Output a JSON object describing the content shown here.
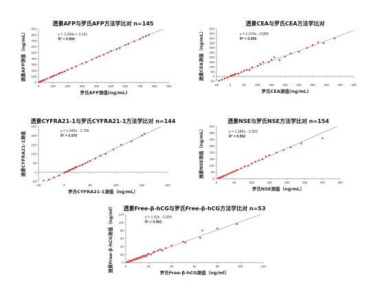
{
  "chart_data": [
    {
      "type": "scatter",
      "title": "透景AFP与罗氏AFP方法学比对 n=145",
      "xlabel": "罗氏AFP测值(ng/mL)",
      "ylabel": "透景AFP测值（ng/mL）",
      "xlim": [
        0,
        900
      ],
      "ylim": [
        0,
        900
      ],
      "xticks": [
        0,
        100,
        200,
        300,
        400,
        500,
        600,
        700,
        800,
        900
      ],
      "yticks": [
        0,
        100,
        200,
        300,
        400,
        500,
        600,
        700,
        800,
        900
      ],
      "equation": "y = 1.044x + 3.141",
      "r2": "R² = 0.990",
      "trend": {
        "slope": 1.044,
        "intercept": 3.141
      },
      "series": [
        {
          "color": "#d42a2a",
          "points": [
            [
              5,
              8
            ],
            [
              10,
              12
            ],
            [
              15,
              18
            ],
            [
              20,
              22
            ],
            [
              28,
              30
            ],
            [
              35,
              40
            ],
            [
              45,
              48
            ],
            [
              60,
              66
            ],
            [
              80,
              84
            ],
            [
              90,
              96
            ],
            [
              100,
              108
            ],
            [
              110,
              118
            ],
            [
              125,
              130
            ],
            [
              140,
              148
            ],
            [
              150,
              160
            ],
            [
              165,
              170
            ],
            [
              180,
              186
            ],
            [
              200,
              210
            ],
            [
              230,
              240
            ],
            [
              260,
              270
            ],
            [
              300,
              315
            ],
            [
              330,
              340
            ],
            [
              370,
              385
            ],
            [
              400,
              420
            ],
            [
              420,
              440
            ],
            [
              450,
              465
            ],
            [
              480,
              500
            ],
            [
              500,
              530
            ],
            [
              540,
              560
            ],
            [
              560,
              580
            ],
            [
              600,
              630
            ],
            [
              620,
              650
            ],
            [
              660,
              690
            ],
            [
              700,
              730
            ],
            [
              720,
              760
            ],
            [
              740,
              780
            ],
            [
              760,
              800
            ]
          ]
        }
      ]
    },
    {
      "type": "scatter",
      "title": "透景CEA与罗氏CEA方法学比对",
      "xlabel": "罗氏CEA测值(ng/mL)",
      "ylabel": "透景CEA测值（ng/mL）",
      "xlim": [
        -50,
        450
      ],
      "ylim": [
        -50,
        500
      ],
      "xticks": [
        -50,
        0,
        50,
        100,
        150,
        200,
        250,
        300,
        350,
        400,
        450
      ],
      "yticks": [
        -50,
        0,
        50,
        100,
        150,
        200,
        250,
        300,
        350,
        400,
        450,
        500
      ],
      "equation": "y = 1.074x - 0.959",
      "r2": "R² = 0.955",
      "trend": {
        "slope": 1.074,
        "intercept": -0.959
      },
      "series": [
        {
          "color": "#d42a2a",
          "points": [
            [
              -40,
              -45
            ],
            [
              -30,
              -35
            ],
            [
              -20,
              -22
            ],
            [
              -10,
              -15
            ],
            [
              0,
              2
            ],
            [
              5,
              8
            ],
            [
              10,
              12
            ],
            [
              15,
              20
            ],
            [
              20,
              25
            ],
            [
              30,
              28
            ],
            [
              40,
              45
            ],
            [
              50,
              60
            ],
            [
              60,
              70
            ],
            [
              70,
              65
            ],
            [
              80,
              95
            ],
            [
              100,
              110
            ],
            [
              110,
              130
            ],
            [
              120,
              150
            ],
            [
              140,
              150
            ],
            [
              150,
              175
            ],
            [
              160,
              200
            ],
            [
              180,
              170
            ],
            [
              200,
              210
            ],
            [
              220,
              240
            ],
            [
              250,
              260
            ],
            [
              280,
              300
            ],
            [
              300,
              330
            ],
            [
              320,
              360
            ],
            [
              340,
              350
            ],
            [
              380,
              400
            ]
          ]
        }
      ]
    },
    {
      "type": "scatter",
      "title": "透景CYFRA21-1与罗氏CYFRA21-1方法学比对 n=144",
      "xlabel": "罗氏CYFRA21-1测值（ng/mL）",
      "ylabel": "透景CYFRA21-1测值",
      "xlim": [
        -50,
        200
      ],
      "ylim": [
        -50,
        250
      ],
      "xticks": [
        -50,
        0,
        50,
        100,
        150,
        200
      ],
      "yticks": [
        -50,
        0,
        50,
        100,
        150,
        200,
        250
      ],
      "equation": "y = 1.349x - 2.795",
      "r2": "R² = 0.970",
      "trend": {
        "slope": 1.349,
        "intercept": -2.795
      },
      "series": [
        {
          "color": "#d42a2a",
          "points": [
            [
              -40,
              -45
            ],
            [
              -30,
              -40
            ],
            [
              -20,
              -28
            ],
            [
              -10,
              -18
            ],
            [
              0,
              -2
            ],
            [
              3,
              2
            ],
            [
              5,
              4
            ],
            [
              8,
              8
            ],
            [
              10,
              10
            ],
            [
              12,
              14
            ],
            [
              15,
              18
            ],
            [
              18,
              20
            ],
            [
              20,
              24
            ],
            [
              22,
              28
            ],
            [
              25,
              30
            ],
            [
              30,
              36
            ],
            [
              35,
              40
            ],
            [
              40,
              48
            ],
            [
              45,
              55
            ],
            [
              50,
              62
            ],
            [
              60,
              75
            ],
            [
              70,
              90
            ],
            [
              80,
              100
            ],
            [
              95,
              125
            ],
            [
              110,
              150
            ],
            [
              130,
              170
            ],
            [
              150,
              200
            ],
            [
              155,
              210
            ]
          ]
        }
      ]
    },
    {
      "type": "scatter",
      "title": "透景NSE与罗氏NSE方法学比对 n=154",
      "xlabel": "罗氏NSE测值（ng/mL）",
      "ylabel": "透景NSE测值（ng/mL）",
      "xlim": [
        0,
        350
      ],
      "ylim": [
        0,
        400
      ],
      "xticks": [
        0,
        50,
        100,
        150,
        200,
        250,
        300,
        350
      ],
      "yticks": [
        0,
        50,
        100,
        150,
        200,
        250,
        300,
        350,
        400
      ],
      "equation": "y = 1.183x - 3.322",
      "r2": "R² = 0.952",
      "trend": {
        "slope": 1.183,
        "intercept": -3.322
      },
      "series": [
        {
          "color": "#d42a2a",
          "points": [
            [
              5,
              4
            ],
            [
              8,
              6
            ],
            [
              10,
              8
            ],
            [
              12,
              10
            ],
            [
              15,
              14
            ],
            [
              18,
              18
            ],
            [
              20,
              20
            ],
            [
              25,
              25
            ],
            [
              30,
              32
            ],
            [
              35,
              38
            ],
            [
              40,
              45
            ],
            [
              45,
              50
            ],
            [
              50,
              55
            ],
            [
              55,
              62
            ],
            [
              60,
              68
            ],
            [
              70,
              80
            ],
            [
              80,
              95
            ],
            [
              90,
              100
            ],
            [
              100,
              115
            ],
            [
              110,
              130
            ],
            [
              120,
              140
            ],
            [
              130,
              150
            ],
            [
              140,
              170
            ],
            [
              150,
              180
            ],
            [
              170,
              200
            ],
            [
              190,
              220
            ],
            [
              210,
              240
            ],
            [
              240,
              270
            ],
            [
              300,
              310
            ]
          ]
        }
      ]
    },
    {
      "type": "scatter",
      "title": "透景Free-β-hCG与罗氏Free-β-hCG方法学比对 n=53",
      "xlabel": "罗氏Free-β-hCG测值（ng/ml）",
      "ylabel": "透景Free-β-hCG测值（ng/ml）",
      "xlim": [
        0,
        120
      ],
      "ylim": [
        0,
        120
      ],
      "xticks": [
        0,
        20,
        40,
        60,
        80,
        100,
        120
      ],
      "yticks": [
        0,
        20,
        40,
        60,
        80,
        100,
        120
      ],
      "equation": "y = 1.02x - 0.390",
      "r2": "R² = 0.962",
      "trend": {
        "slope": 1.02,
        "intercept": -0.39
      },
      "series": [
        {
          "color": "#d42a2a",
          "points": [
            [
              1,
              1
            ],
            [
              2,
              2
            ],
            [
              3,
              3
            ],
            [
              4,
              5
            ],
            [
              5,
              4
            ],
            [
              6,
              6
            ],
            [
              7,
              8
            ],
            [
              8,
              7
            ],
            [
              9,
              10
            ],
            [
              10,
              9
            ],
            [
              11,
              12
            ],
            [
              12,
              11
            ],
            [
              13,
              14
            ],
            [
              14,
              13
            ],
            [
              15,
              17
            ],
            [
              16,
              15
            ],
            [
              17,
              18
            ],
            [
              18,
              16
            ],
            [
              19,
              20
            ],
            [
              20,
              22
            ],
            [
              22,
              20
            ],
            [
              24,
              25
            ],
            [
              25,
              27
            ],
            [
              28,
              30
            ],
            [
              30,
              33
            ],
            [
              32,
              30
            ],
            [
              35,
              36
            ],
            [
              40,
              42
            ],
            [
              50,
              52
            ],
            [
              52,
              50
            ],
            [
              65,
              62
            ],
            [
              67,
              80
            ],
            [
              80,
              85
            ],
            [
              97,
              96
            ]
          ]
        }
      ]
    }
  ]
}
